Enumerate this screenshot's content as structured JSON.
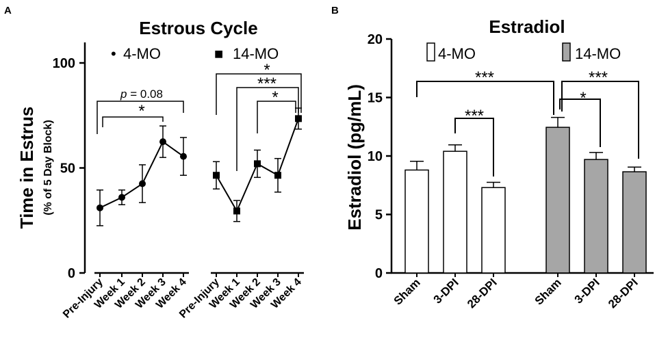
{
  "chart_data": [
    {
      "panel": "A",
      "type": "line",
      "title": "Estrous Cycle",
      "ylabel": "Time in Estrus",
      "ylabel_sub": "(% of 5 Day Block)",
      "ylim": [
        0,
        105
      ],
      "yticks": [
        0,
        50,
        100
      ],
      "categories": [
        "Pre-Injury",
        "Week 1",
        "Week 2",
        "Week 3",
        "Week 4"
      ],
      "series": [
        {
          "name": "4-MO",
          "marker": "circle",
          "legend_symbol": "•",
          "values": [
            31,
            36,
            42.5,
            62.5,
            55.5
          ],
          "errors": [
            8.5,
            3.5,
            9,
            7.5,
            9
          ]
        },
        {
          "name": "14-MO",
          "marker": "square",
          "legend_symbol": "■",
          "values": [
            46.5,
            29.5,
            52,
            46.5,
            73.5
          ],
          "errors": [
            6.5,
            5,
            6.5,
            8,
            5
          ]
        }
      ],
      "annotations": [
        {
          "series": "4-MO",
          "from": "Pre-Injury",
          "to": "Week 3",
          "label": "*"
        },
        {
          "series": "4-MO",
          "from": "Pre-Injury",
          "to": "Week 4",
          "label": "p = 0.08",
          "label_italic": "p",
          "label_rest": " = 0.08"
        },
        {
          "series": "14-MO",
          "from": "Pre-Injury",
          "to": "Week 4",
          "label": "*"
        },
        {
          "series": "14-MO",
          "from": "Week 1",
          "to": "Week 4",
          "label": "***"
        },
        {
          "series": "14-MO",
          "from": "Week 2",
          "to": "Week 4",
          "label": "*"
        }
      ]
    },
    {
      "panel": "B",
      "type": "bar",
      "title": "Estradiol",
      "ylabel": "Estradiol (pg/mL)",
      "ylim": [
        0,
        20
      ],
      "yticks": [
        0,
        5,
        10,
        15,
        20
      ],
      "categories": [
        "Sham",
        "3-DPI",
        "28-DPI"
      ],
      "series": [
        {
          "name": "4-MO",
          "color": "#ffffff",
          "values": [
            8.8,
            10.4,
            7.3
          ],
          "errors": [
            0.75,
            0.55,
            0.45
          ]
        },
        {
          "name": "14-MO",
          "color": "#a6a6a6",
          "values": [
            12.45,
            9.7,
            8.65
          ],
          "errors": [
            0.85,
            0.6,
            0.4
          ]
        }
      ],
      "annotations": [
        {
          "from": [
            "4-MO",
            "Sham"
          ],
          "to": [
            "14-MO",
            "Sham"
          ],
          "label": "***"
        },
        {
          "from": [
            "4-MO",
            "3-DPI"
          ],
          "to": [
            "4-MO",
            "28-DPI"
          ],
          "label": "***"
        },
        {
          "from": [
            "14-MO",
            "Sham"
          ],
          "to": [
            "14-MO",
            "3-DPI"
          ],
          "label": "*"
        },
        {
          "from": [
            "14-MO",
            "Sham"
          ],
          "to": [
            "14-MO",
            "28-DPI"
          ],
          "label": "***"
        }
      ]
    }
  ]
}
